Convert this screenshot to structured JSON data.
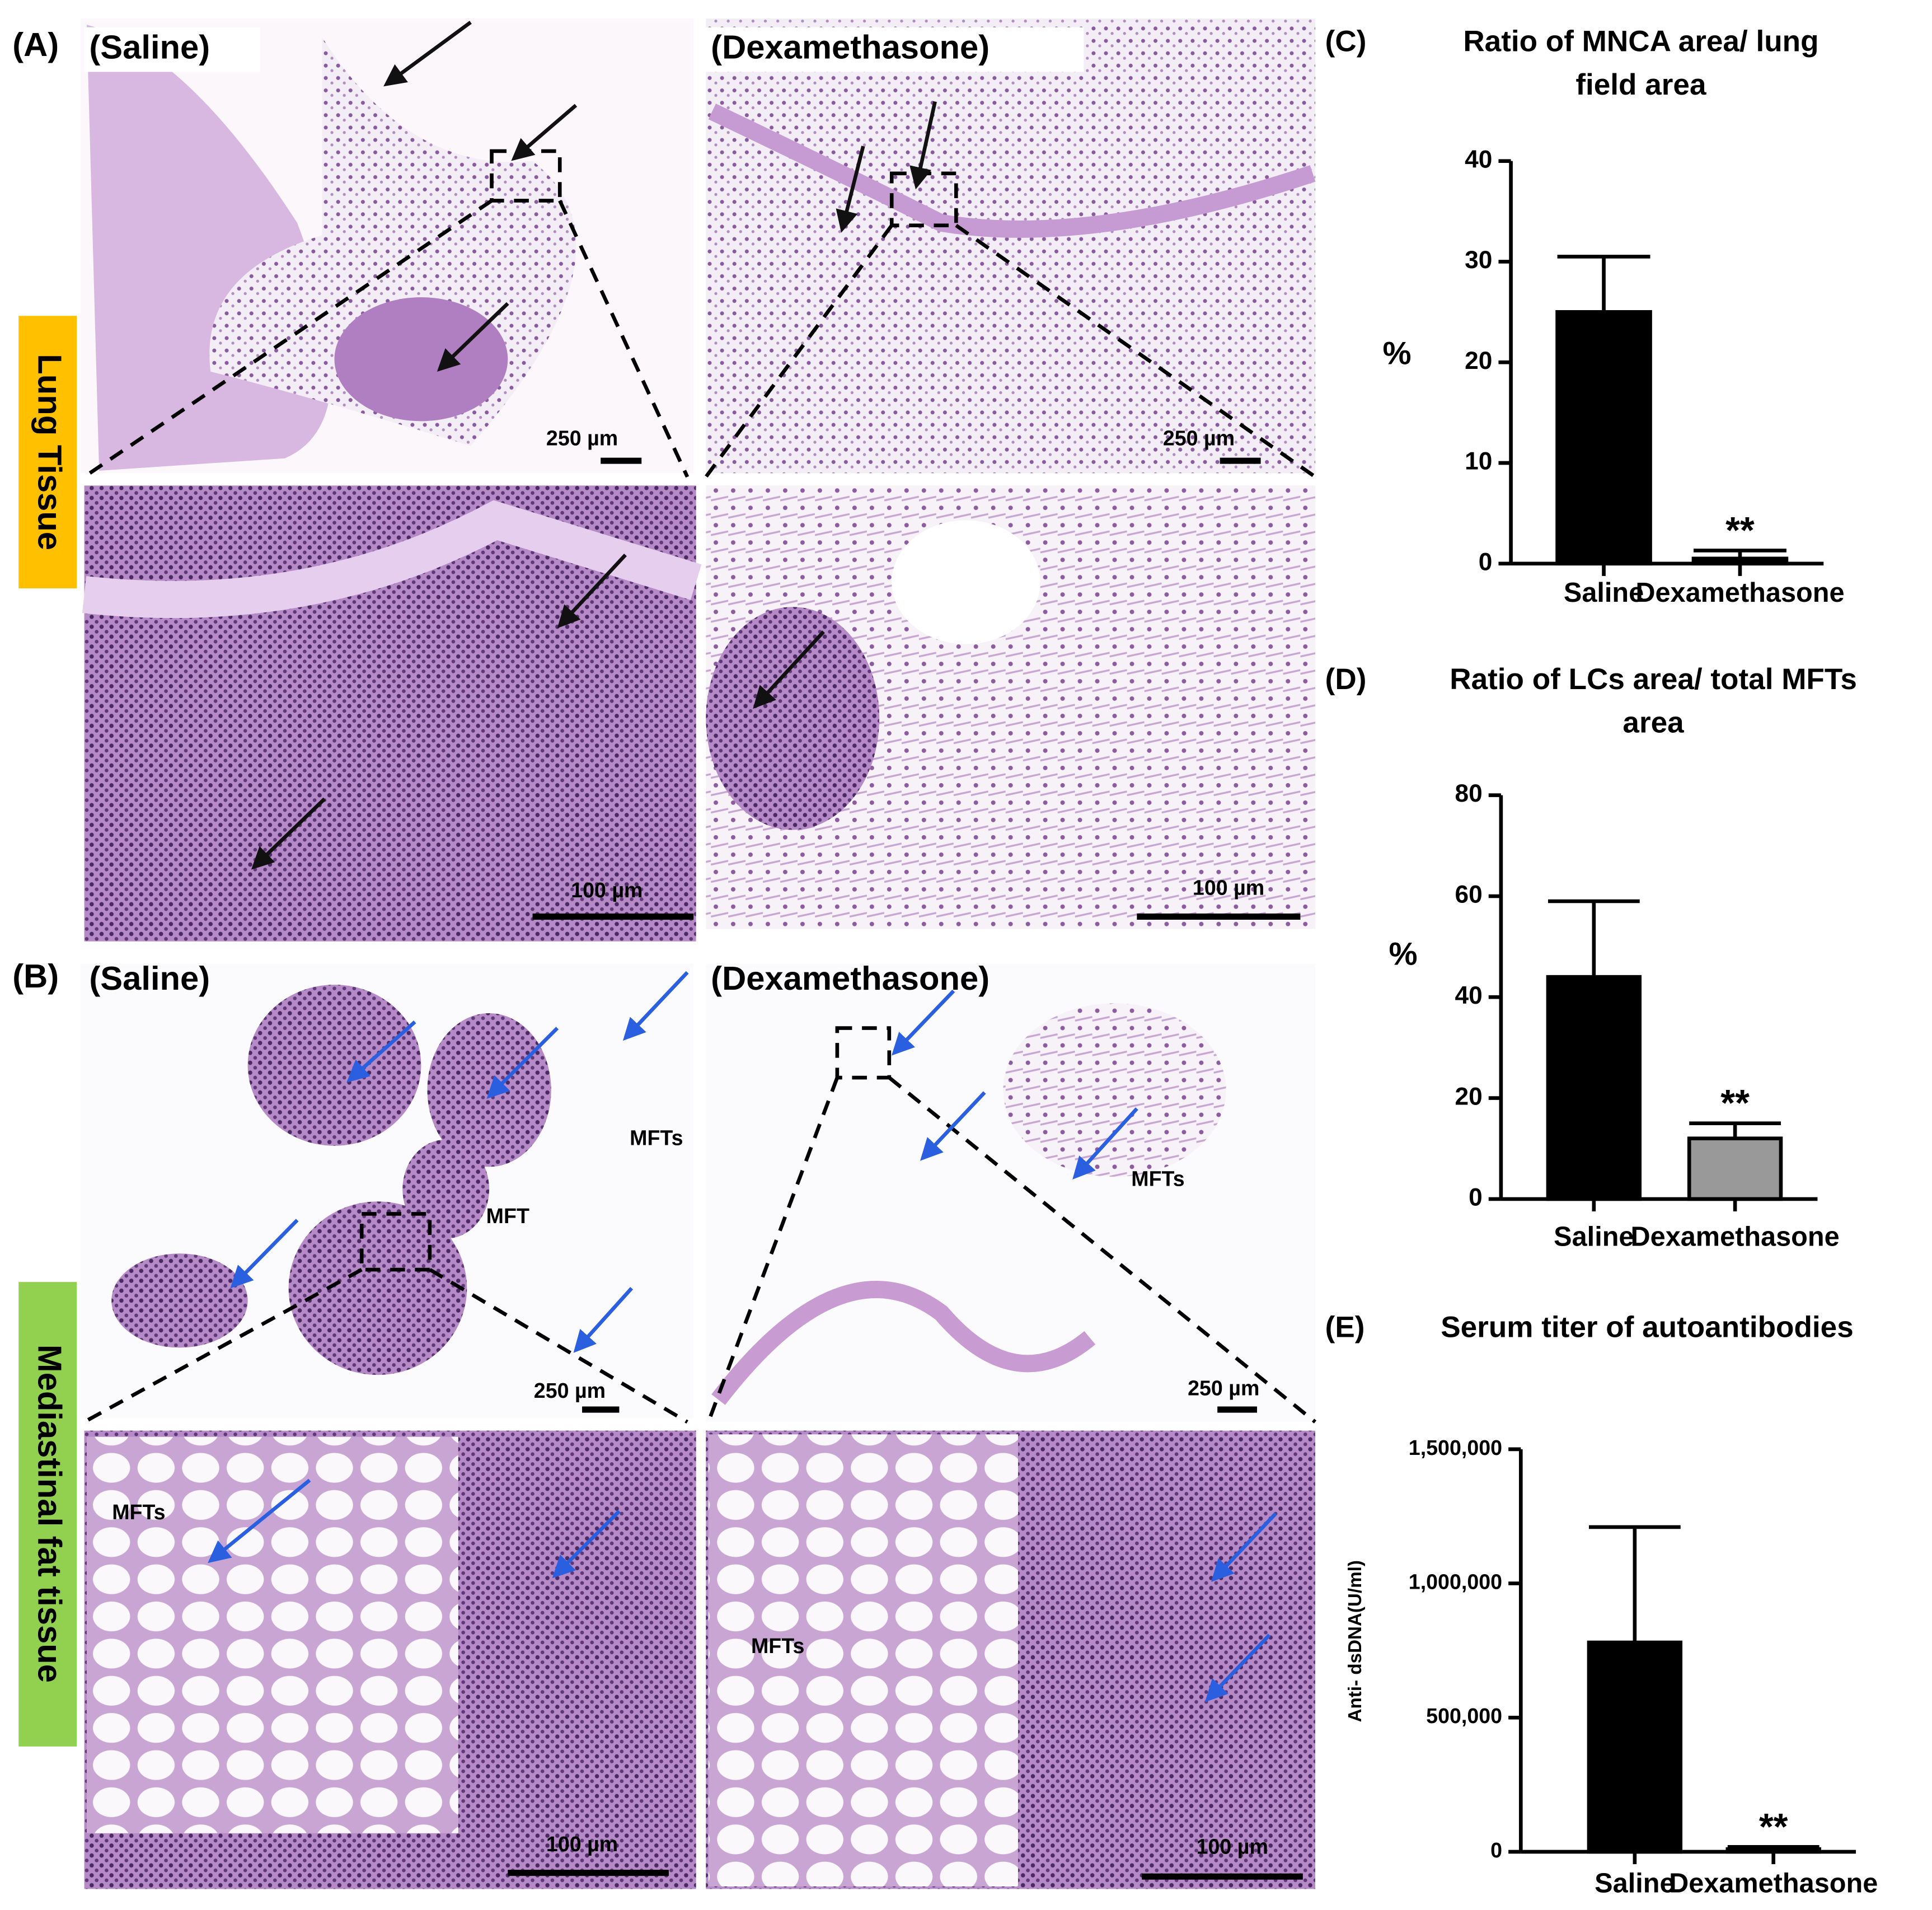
{
  "panel_a": {
    "label": "(A)",
    "left_title": "(Saline)",
    "right_title": "(Dexamethasone)",
    "side_label": "Lung Tissue",
    "scale_low": "250 µm",
    "scale_high": "100 µm"
  },
  "panel_b": {
    "label": "(B)",
    "left_title": "(Saline)",
    "right_title": "(Dexamethasone)",
    "side_label": "Mediastinal fat tissue",
    "scale_low": "250 µm",
    "scale_high": "100 µm",
    "tissue_labels": [
      "MFTs",
      "MFT",
      "MFTs",
      "MFTs",
      "MFTs"
    ]
  },
  "chart_data": [
    {
      "type": "bar",
      "label": "(C)",
      "title": [
        "Ratio of MNCA area/ lung",
        "field area"
      ],
      "ylabel": "%",
      "categories": [
        "Saline",
        "Dexamethasone"
      ],
      "values": [
        25,
        0.5
      ],
      "errors": [
        5.5,
        0.8
      ],
      "colors": [
        "#000000",
        "#000000"
      ],
      "significance": [
        null,
        "**"
      ],
      "ylim": [
        0,
        40
      ],
      "yticks": [
        0,
        10,
        20,
        30,
        40
      ]
    },
    {
      "type": "bar",
      "label": "(D)",
      "title": [
        "Ratio of LCs area/ total MFTs",
        "area"
      ],
      "ylabel": "%",
      "categories": [
        "Saline",
        "Dexamethasone"
      ],
      "values": [
        44,
        12
      ],
      "errors": [
        15,
        3
      ],
      "colors": [
        "#000000",
        "#999999"
      ],
      "significance": [
        null,
        "**"
      ],
      "ylim": [
        0,
        80
      ],
      "yticks": [
        0,
        20,
        40,
        60,
        80
      ]
    },
    {
      "type": "bar",
      "label": "(E)",
      "title": [
        "Serum titer of autoantibodies"
      ],
      "ylabel": "Anti- dsDNA(U/ml)",
      "categories": [
        "Saline",
        "Dexamethasone"
      ],
      "values": [
        780000,
        10000
      ],
      "errors": [
        430000,
        8000
      ],
      "colors": [
        "#000000",
        "#000000"
      ],
      "significance": [
        null,
        "**"
      ],
      "ylim": [
        0,
        1500000
      ],
      "yticks": [
        0,
        {
          "value": 500000,
          "label": "500,000"
        },
        {
          "value": 1000000,
          "label": "1,000,000"
        },
        {
          "value": 1500000,
          "label": "1,500,000"
        }
      ]
    }
  ]
}
